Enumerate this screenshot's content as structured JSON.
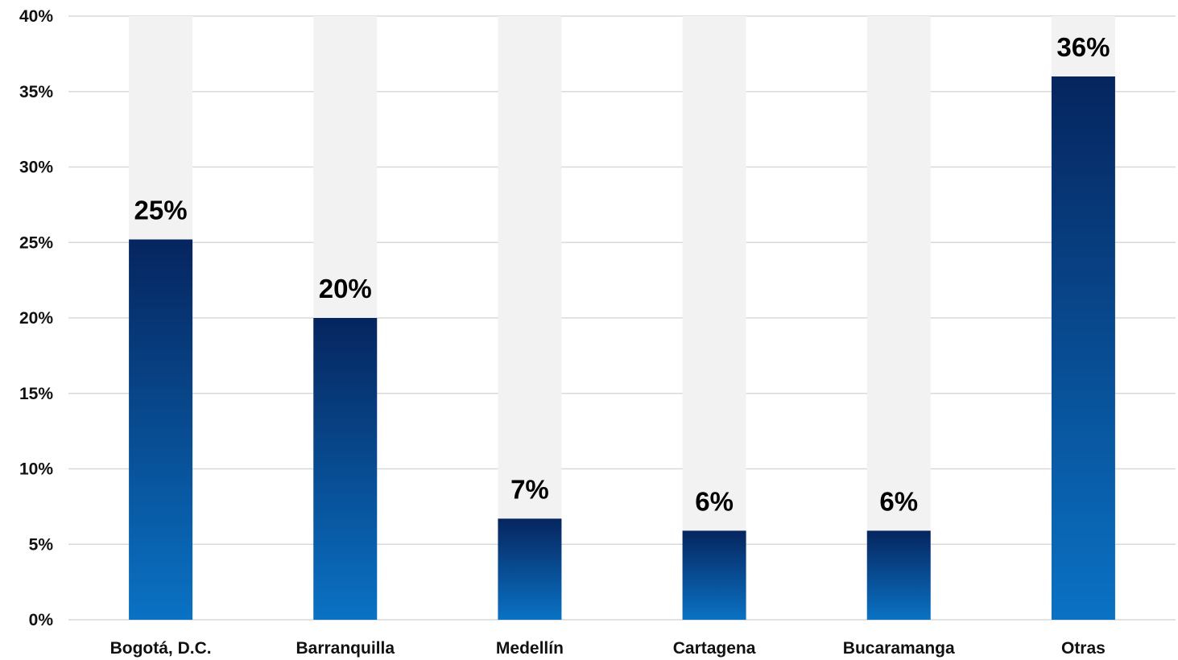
{
  "chart_data": {
    "type": "bar",
    "categories": [
      "Bogotá, D.C.",
      "Barranquilla",
      "Medellín",
      "Cartagena",
      "Bucaramanga",
      "Otras"
    ],
    "values": [
      25.2,
      20.0,
      6.7,
      5.9,
      5.9,
      36.0
    ],
    "data_labels": [
      "25%",
      "20%",
      "7%",
      "6%",
      "6%",
      "36%"
    ],
    "ylim": [
      0,
      40
    ],
    "yticks": [
      0,
      5,
      10,
      15,
      20,
      25,
      30,
      35,
      40
    ],
    "ytick_labels": [
      "0%",
      "5%",
      "10%",
      "15%",
      "20%",
      "25%",
      "30%",
      "35%",
      "40%"
    ],
    "title": "",
    "xlabel": "",
    "ylabel": "",
    "grid": true,
    "legend": "none",
    "colors": {
      "bar_top": "#06255f",
      "bar_bottom": "#0a72c4",
      "track": "#f2f2f2",
      "grid": "#d9d9d9",
      "text": "#111111"
    }
  }
}
